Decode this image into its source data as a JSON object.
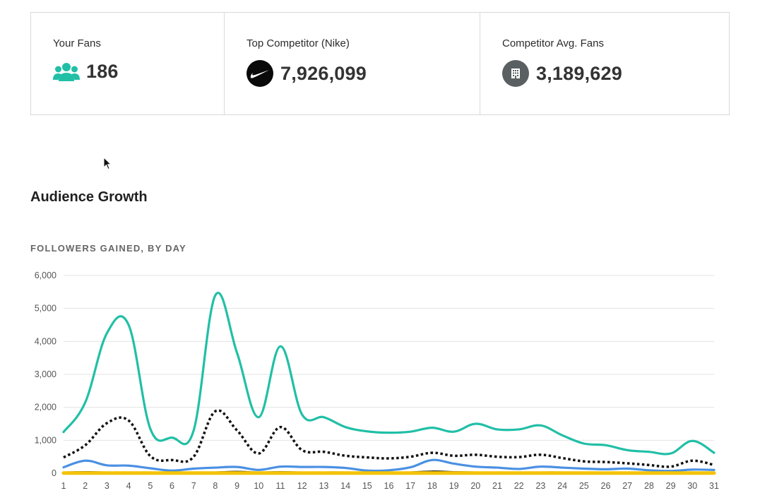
{
  "stats": {
    "your_fans": {
      "label": "Your Fans",
      "value": "186",
      "icon": "users-icon",
      "color": "#21bfa6"
    },
    "top_competitor": {
      "label": "Top Competitor (Nike)",
      "value": "7,926,099",
      "icon": "nike-swoosh-icon",
      "color": "#0a0a0a"
    },
    "competitor_avg": {
      "label": "Competitor Avg. Fans",
      "value": "3,189,629",
      "icon": "building-icon",
      "color": "#5a5f61"
    }
  },
  "audience_growth": {
    "title": "Audience Growth",
    "chart_title": "FOLLOWERS GAINED, BY DAY"
  },
  "chart_data": {
    "type": "line",
    "title": "FOLLOWERS GAINED, BY DAY",
    "xlabel": "",
    "ylabel": "",
    "x": [
      1,
      2,
      3,
      4,
      5,
      6,
      7,
      8,
      9,
      10,
      11,
      12,
      13,
      14,
      15,
      16,
      17,
      18,
      19,
      20,
      21,
      22,
      23,
      24,
      25,
      26,
      27,
      28,
      29,
      30,
      31
    ],
    "x_tick_labels": [
      "1",
      "2",
      "3",
      "4",
      "5",
      "6",
      "7",
      "8",
      "9",
      "10",
      "11",
      "12",
      "13",
      "14",
      "15",
      "16",
      "17",
      "18",
      "19",
      "20",
      "21",
      "22",
      "23",
      "24",
      "25",
      "26",
      "27",
      "28",
      "29",
      "30",
      "31"
    ],
    "y_tick_labels": [
      "0",
      "1,000",
      "2,000",
      "3,000",
      "4,000",
      "5,000",
      "6,000"
    ],
    "ylim": [
      0,
      6000
    ],
    "grid": true,
    "series": [
      {
        "color": "#21bfa6",
        "style": "solid",
        "values": [
          1250,
          2150,
          4250,
          4500,
          1350,
          1080,
          1300,
          5400,
          3650,
          1700,
          3850,
          1780,
          1700,
          1400,
          1270,
          1230,
          1260,
          1380,
          1260,
          1500,
          1330,
          1330,
          1450,
          1150,
          900,
          850,
          700,
          650,
          600,
          980,
          620
        ]
      },
      {
        "color": "#111111",
        "style": "dotted",
        "values": [
          480,
          850,
          1520,
          1600,
          520,
          400,
          500,
          1880,
          1300,
          600,
          1400,
          700,
          650,
          530,
          480,
          450,
          500,
          620,
          530,
          560,
          500,
          490,
          560,
          460,
          360,
          340,
          300,
          250,
          200,
          380,
          250
        ]
      },
      {
        "color": "#4a90e2",
        "style": "solid",
        "values": [
          180,
          380,
          240,
          230,
          150,
          80,
          140,
          170,
          190,
          100,
          200,
          190,
          190,
          160,
          80,
          90,
          180,
          400,
          290,
          200,
          170,
          130,
          200,
          170,
          140,
          120,
          140,
          90,
          70,
          110,
          100
        ]
      },
      {
        "color": "#333333",
        "style": "solid",
        "values": [
          20,
          30,
          20,
          20,
          15,
          10,
          15,
          20,
          40,
          20,
          30,
          20,
          20,
          20,
          10,
          10,
          20,
          50,
          30,
          20,
          20,
          15,
          20,
          20,
          15,
          15,
          20,
          10,
          10,
          15,
          10
        ]
      },
      {
        "color": "#f5c200",
        "style": "solid",
        "values": [
          5,
          5,
          5,
          5,
          5,
          5,
          5,
          5,
          5,
          5,
          5,
          5,
          5,
          5,
          5,
          5,
          5,
          5,
          5,
          5,
          5,
          5,
          5,
          5,
          5,
          5,
          5,
          5,
          5,
          5,
          5
        ]
      }
    ]
  }
}
